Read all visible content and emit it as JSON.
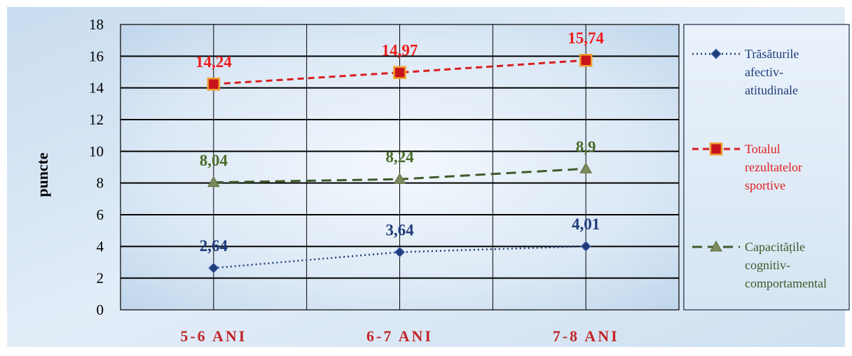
{
  "chart_data": {
    "type": "line",
    "title": "",
    "xlabel": "",
    "ylabel": "puncte",
    "ylim": [
      0,
      18
    ],
    "ytick_step": 2,
    "categories": [
      "5-6 ANI",
      "6-7 ANI",
      "7-8 ANI"
    ],
    "series": [
      {
        "key": "afectiv",
        "name": "Trăsăturile afectiv-atitudinale",
        "legend_lines": [
          "Trăsăturile",
          "afectiv-",
          "atitudinale"
        ],
        "values": [
          2.64,
          3.64,
          4.01
        ],
        "labels": [
          "2,64",
          "3,64",
          "4,01"
        ],
        "color": "#1f3b7a",
        "label_color": "#1f3b7a",
        "marker": "diamond",
        "dash": "dotted"
      },
      {
        "key": "sportive",
        "name": "Totalul rezultatelor sportive",
        "legend_lines": [
          "Totalul",
          "rezultatelor",
          "sportive"
        ],
        "values": [
          14.24,
          14.97,
          15.74
        ],
        "labels": [
          "14,24",
          "14,97",
          "15,74"
        ],
        "color": "#d81e1e",
        "label_color": "#ee1c1c",
        "marker": "square",
        "dash": "dashed"
      },
      {
        "key": "cognitiv",
        "name": "Capacitățile cognitiv-comportamental",
        "legend_lines": [
          "Capacitățile",
          "cognitiv-",
          "comportamental"
        ],
        "values": [
          8.04,
          8.24,
          8.9
        ],
        "labels": [
          "8,04",
          "8,24",
          "8,9"
        ],
        "color": "#3d5a2a",
        "label_color": "#4a6b2a",
        "marker": "triangle",
        "dash": "long-dashed"
      }
    ],
    "x_tick_color": "#c0262a",
    "grid": true,
    "legend_position": "right"
  }
}
